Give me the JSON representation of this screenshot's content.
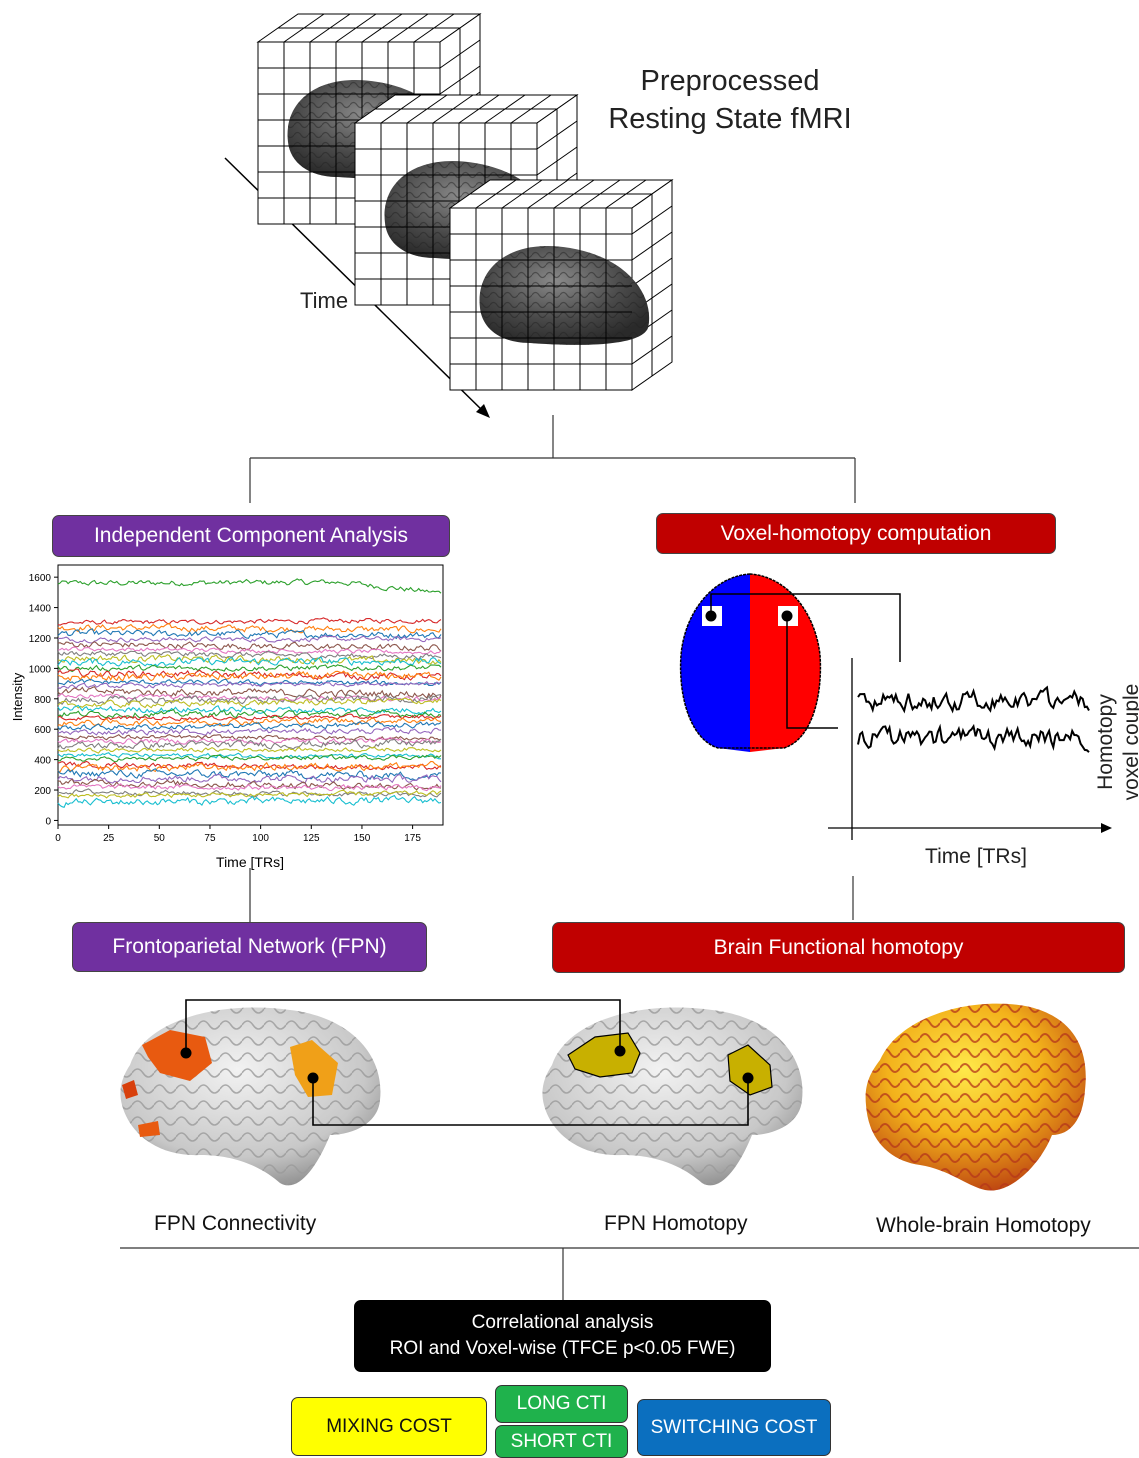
{
  "header": {
    "title_line1": "Preprocessed",
    "title_line2": "Resting State fMRI",
    "time_label": "Time"
  },
  "branches": {
    "ica_label": "Independent Component Analysis",
    "homotopy_label": "Voxel-homotopy computation",
    "fpn_label": "Frontoparietal Network (FPN)",
    "functional_homotopy_label": "Brain Functional homotopy"
  },
  "homotopy_plot": {
    "x_label": "Time [TRs]",
    "y_label_line1": "Homotopy",
    "y_label_line2": "voxel couple"
  },
  "chart_data": {
    "type": "line",
    "xlabel": "Time [TRs]",
    "ylabel": "Intensity",
    "xlim": [
      0,
      190
    ],
    "ylim": [
      -30,
      1680
    ],
    "x_ticks": [
      0,
      25,
      50,
      75,
      100,
      125,
      150,
      175
    ],
    "y_ticks": [
      0,
      200,
      400,
      600,
      800,
      1000,
      1200,
      1400,
      1600
    ],
    "series_count": 40,
    "series_baselines": [
      1560,
      1300,
      1270,
      1230,
      1190,
      1160,
      1130,
      1100,
      1070,
      1040,
      1000,
      970,
      940,
      910,
      880,
      850,
      820,
      790,
      760,
      730,
      700,
      670,
      640,
      610,
      580,
      550,
      520,
      490,
      460,
      430,
      400,
      370,
      340,
      310,
      280,
      250,
      220,
      190,
      160,
      120
    ],
    "series_colors": [
      "#2ca02c",
      "#d62728",
      "#ff7f0e",
      "#1f77b4",
      "#9467bd",
      "#8c564b",
      "#e377c2",
      "#7f7f7f",
      "#bcbd22",
      "#17becf"
    ],
    "grid": false
  },
  "brains": {
    "fpn_connectivity": "FPN Connectivity",
    "fpn_homotopy": "FPN Homotopy",
    "whole_brain": "Whole-brain Homotopy"
  },
  "analysis": {
    "line1": "Correlational analysis",
    "line2": "ROI and Voxel-wise (TFCE p<0.05 FWE)"
  },
  "outcomes": {
    "mixing": "MIXING COST",
    "long_cti": "LONG CTI",
    "short_cti": "SHORT CTI",
    "switching": "SWITCHING COST"
  },
  "colors": {
    "purple": "#7030a0",
    "red": "#c00000",
    "yellow": "#ffff00",
    "green": "#1fb24c",
    "blue": "#0b6fbf"
  }
}
